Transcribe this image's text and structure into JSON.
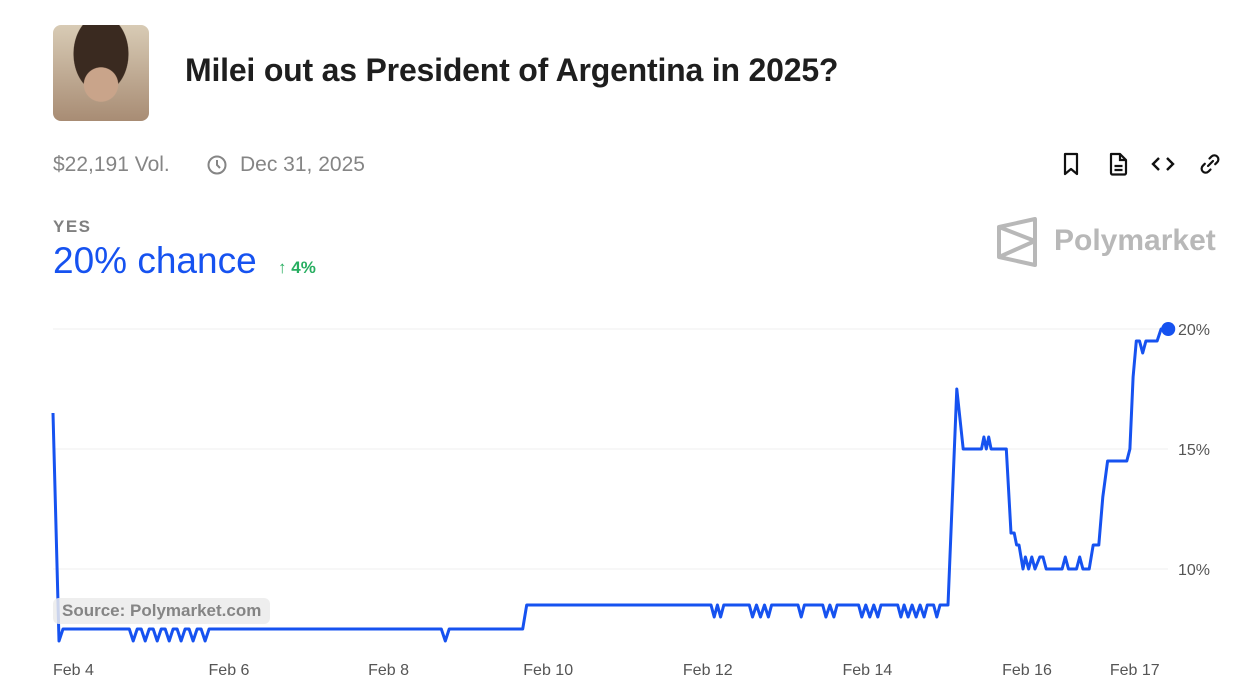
{
  "header": {
    "title": "Milei out as President of Argentina in 2025?",
    "volume": "$22,191 Vol.",
    "end_date": "Dec 31, 2025"
  },
  "toolbar": {
    "icons": [
      "bookmark-icon",
      "document-icon",
      "embed-code-icon",
      "link-icon"
    ]
  },
  "outcome": {
    "label": "YES",
    "chance": "20% chance",
    "change": "4%",
    "change_direction": "up"
  },
  "brand": {
    "name": "Polymarket"
  },
  "source": "Source: Polymarket.com",
  "colors": {
    "line": "#1652f0",
    "up": "#27ae60",
    "grid": "#efefef"
  },
  "chart_data": {
    "type": "line",
    "title": "Milei out as President of Argentina in 2025?",
    "xlabel": "",
    "ylabel": "",
    "x_unit": "day of February",
    "yticks": [
      {
        "v": 20,
        "label": "20%"
      },
      {
        "v": 15,
        "label": "15%"
      },
      {
        "v": 10,
        "label": "10%"
      }
    ],
    "xticks": [
      {
        "d": 4,
        "label": "Feb 4"
      },
      {
        "d": 6,
        "label": "Feb 6"
      },
      {
        "d": 8,
        "label": "Feb 8"
      },
      {
        "d": 10,
        "label": "Feb 10"
      },
      {
        "d": 12,
        "label": "Feb 12"
      },
      {
        "d": 14,
        "label": "Feb 14"
      },
      {
        "d": 16,
        "label": "Feb 16"
      },
      {
        "d": 17.35,
        "label": "Feb 17"
      }
    ],
    "ylim": [
      7,
      20
    ],
    "grid": true,
    "series": [
      {
        "name": "YES",
        "points": [
          [
            3.795,
            16.5
          ],
          [
            3.87,
            7.0
          ],
          [
            3.92,
            7.5
          ],
          [
            4.75,
            7.5
          ],
          [
            4.8,
            7.0
          ],
          [
            4.85,
            7.5
          ],
          [
            4.9,
            7.5
          ],
          [
            4.95,
            7.0
          ],
          [
            5.0,
            7.5
          ],
          [
            5.05,
            7.5
          ],
          [
            5.1,
            7.0
          ],
          [
            5.15,
            7.5
          ],
          [
            5.2,
            7.5
          ],
          [
            5.25,
            7.0
          ],
          [
            5.3,
            7.5
          ],
          [
            5.35,
            7.5
          ],
          [
            5.4,
            7.0
          ],
          [
            5.45,
            7.5
          ],
          [
            5.5,
            7.5
          ],
          [
            5.55,
            7.0
          ],
          [
            5.6,
            7.5
          ],
          [
            5.65,
            7.5
          ],
          [
            5.7,
            7.0
          ],
          [
            5.75,
            7.5
          ],
          [
            8.66,
            7.5
          ],
          [
            8.71,
            7.0
          ],
          [
            8.76,
            7.5
          ],
          [
            9.68,
            7.5
          ],
          [
            9.73,
            8.5
          ],
          [
            12.04,
            8.5
          ],
          [
            12.08,
            8.0
          ],
          [
            12.12,
            8.5
          ],
          [
            12.16,
            8.0
          ],
          [
            12.2,
            8.5
          ],
          [
            12.52,
            8.5
          ],
          [
            12.56,
            8.0
          ],
          [
            12.61,
            8.5
          ],
          [
            12.66,
            8.0
          ],
          [
            12.71,
            8.5
          ],
          [
            12.76,
            8.0
          ],
          [
            12.8,
            8.5
          ],
          [
            13.13,
            8.5
          ],
          [
            13.17,
            8.0
          ],
          [
            13.21,
            8.5
          ],
          [
            13.44,
            8.5
          ],
          [
            13.48,
            8.0
          ],
          [
            13.53,
            8.5
          ],
          [
            13.58,
            8.0
          ],
          [
            13.62,
            8.5
          ],
          [
            13.89,
            8.5
          ],
          [
            13.93,
            8.0
          ],
          [
            13.98,
            8.5
          ],
          [
            14.03,
            8.0
          ],
          [
            14.08,
            8.5
          ],
          [
            14.13,
            8.0
          ],
          [
            14.17,
            8.5
          ],
          [
            14.38,
            8.5
          ],
          [
            14.42,
            8.0
          ],
          [
            14.46,
            8.5
          ],
          [
            14.51,
            8.0
          ],
          [
            14.56,
            8.5
          ],
          [
            14.61,
            8.0
          ],
          [
            14.66,
            8.5
          ],
          [
            14.71,
            8.0
          ],
          [
            14.75,
            8.5
          ],
          [
            14.83,
            8.5
          ],
          [
            14.87,
            8.0
          ],
          [
            14.91,
            8.5
          ],
          [
            15.01,
            8.5
          ],
          [
            15.12,
            17.5
          ],
          [
            15.2,
            15.0
          ],
          [
            15.43,
            15.0
          ],
          [
            15.46,
            15.5
          ],
          [
            15.49,
            15.0
          ],
          [
            15.52,
            15.5
          ],
          [
            15.55,
            15.0
          ],
          [
            15.74,
            15.0
          ],
          [
            15.8,
            11.5
          ],
          [
            15.84,
            11.5
          ],
          [
            15.87,
            11.0
          ],
          [
            15.9,
            11.0
          ],
          [
            15.95,
            10.0
          ],
          [
            15.98,
            10.5
          ],
          [
            16.02,
            10.0
          ],
          [
            16.06,
            10.5
          ],
          [
            16.1,
            10.0
          ],
          [
            16.16,
            10.5
          ],
          [
            16.2,
            10.5
          ],
          [
            16.24,
            10.0
          ],
          [
            16.44,
            10.0
          ],
          [
            16.48,
            10.5
          ],
          [
            16.52,
            10.0
          ],
          [
            16.62,
            10.0
          ],
          [
            16.66,
            10.5
          ],
          [
            16.7,
            10.0
          ],
          [
            16.78,
            10.0
          ],
          [
            16.83,
            11.0
          ],
          [
            16.9,
            11.0
          ],
          [
            16.95,
            13.0
          ],
          [
            17.01,
            14.5
          ],
          [
            17.25,
            14.5
          ],
          [
            17.29,
            15.0
          ],
          [
            17.33,
            18.0
          ],
          [
            17.37,
            19.5
          ],
          [
            17.41,
            19.5
          ],
          [
            17.45,
            19.0
          ],
          [
            17.49,
            19.5
          ],
          [
            17.63,
            19.5
          ],
          [
            17.68,
            20.0
          ],
          [
            17.77,
            20.0
          ]
        ]
      }
    ]
  }
}
